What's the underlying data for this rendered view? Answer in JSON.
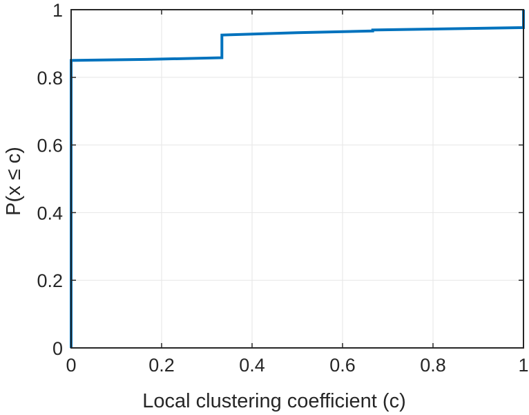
{
  "chart_data": {
    "type": "line",
    "step": true,
    "xlabel": "Local clustering coefficient (c)",
    "ylabel": "P(x ≤ c)",
    "xlim": [
      0,
      1
    ],
    "ylim": [
      0,
      1
    ],
    "grid": true,
    "xticks": [
      0,
      0.2,
      0.4,
      0.6,
      0.8,
      1
    ],
    "yticks": [
      0,
      0.2,
      0.4,
      0.6,
      0.8,
      1
    ],
    "xtick_labels": [
      "0",
      "0.2",
      "0.4",
      "0.6",
      "0.8",
      "1"
    ],
    "ytick_labels": [
      "0",
      "0.2",
      "0.4",
      "0.6",
      "0.8",
      "1"
    ],
    "series": [
      {
        "color": "#0072bd",
        "x": [
          0,
          0,
          0.1667,
          0.3333,
          0.3333,
          0.5,
          0.6667,
          0.6667,
          1,
          1
        ],
        "y": [
          0,
          0.85,
          0.853,
          0.858,
          0.925,
          0.932,
          0.937,
          0.94,
          0.947,
          1
        ]
      }
    ]
  }
}
